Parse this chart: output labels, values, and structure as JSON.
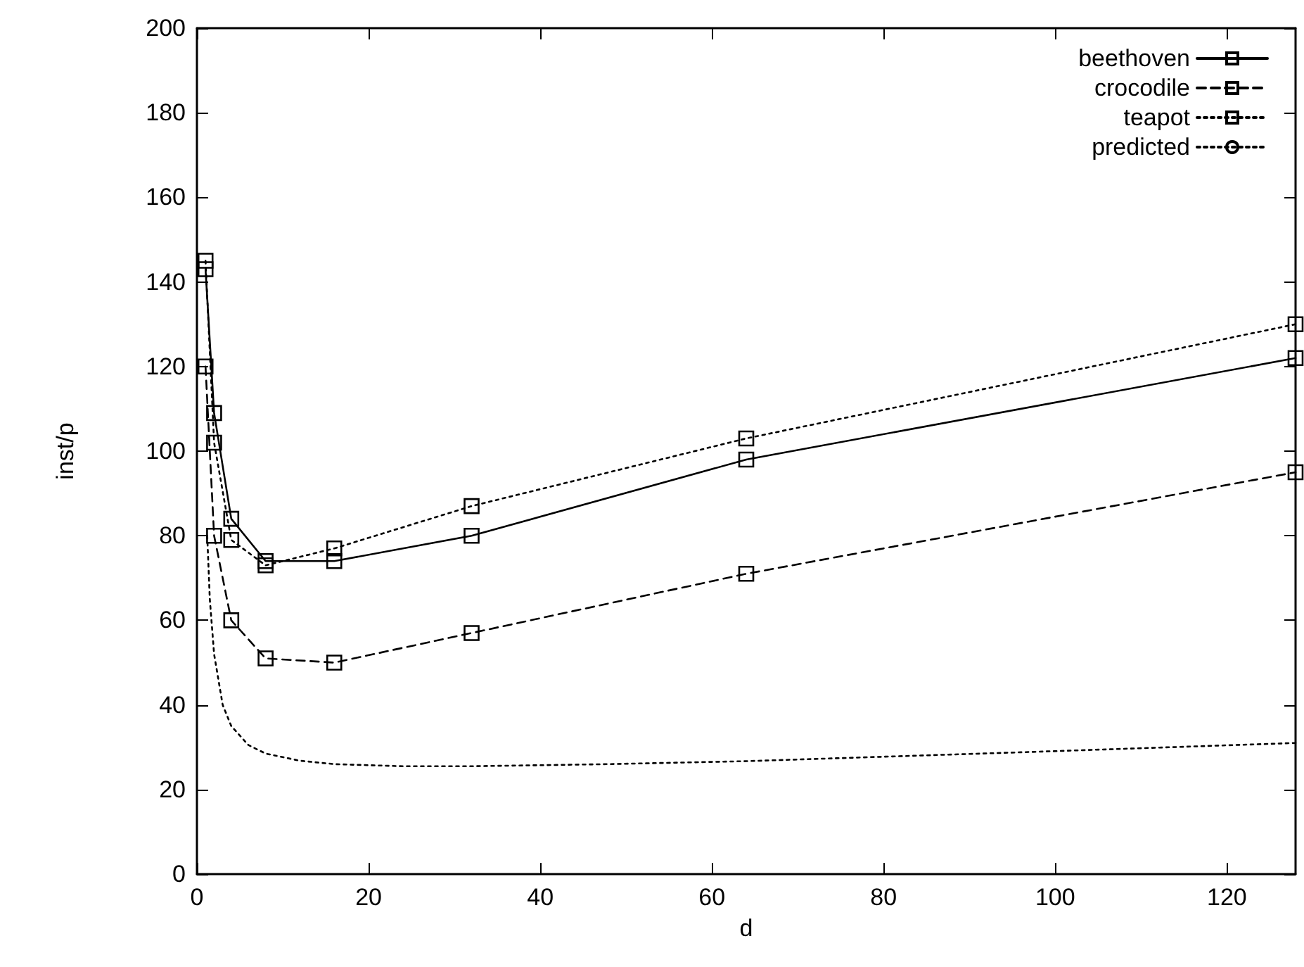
{
  "chart_data": {
    "type": "line",
    "xlabel": "d",
    "ylabel": "inst/p",
    "xlim": [
      0,
      128
    ],
    "xticks": [
      0,
      20,
      40,
      60,
      80,
      100,
      120
    ],
    "ylim": [
      0,
      200
    ],
    "yticks": [
      0,
      20,
      40,
      60,
      80,
      100,
      120,
      140,
      160,
      180,
      200
    ],
    "grid": false,
    "legend": "top right",
    "series": [
      {
        "name": "beethoven",
        "color": "#000000",
        "marker": "square",
        "line_style": "solid",
        "x": [
          1,
          2,
          4,
          8,
          16,
          32,
          64,
          128
        ],
        "values": [
          143,
          109,
          84,
          74,
          74,
          80,
          98,
          122
        ]
      },
      {
        "name": "crocodile",
        "color": "#000000",
        "marker": "square",
        "line_style": "dashed",
        "x": [
          1,
          2,
          4,
          8,
          16,
          32,
          64,
          128
        ],
        "values": [
          120,
          80,
          60,
          51,
          50,
          57,
          71,
          95
        ]
      },
      {
        "name": "teapot",
        "color": "#000000",
        "marker": "square",
        "line_style": "dotted",
        "x": [
          1,
          2,
          4,
          8,
          16,
          32,
          64,
          128
        ],
        "values": [
          145,
          102,
          79,
          73,
          77,
          87,
          103,
          130
        ]
      },
      {
        "name": "predicted",
        "color": "#000000",
        "marker": "none",
        "line_style": "dotted",
        "x": [
          1.2,
          1.5,
          2,
          3,
          4,
          6,
          8,
          12,
          16,
          24,
          32,
          48,
          64,
          96,
          128
        ],
        "values": [
          80,
          65,
          52,
          40,
          35,
          30.5,
          28.5,
          26.8,
          26,
          25.5,
          25.5,
          26,
          26.7,
          28.8,
          31
        ]
      }
    ]
  }
}
